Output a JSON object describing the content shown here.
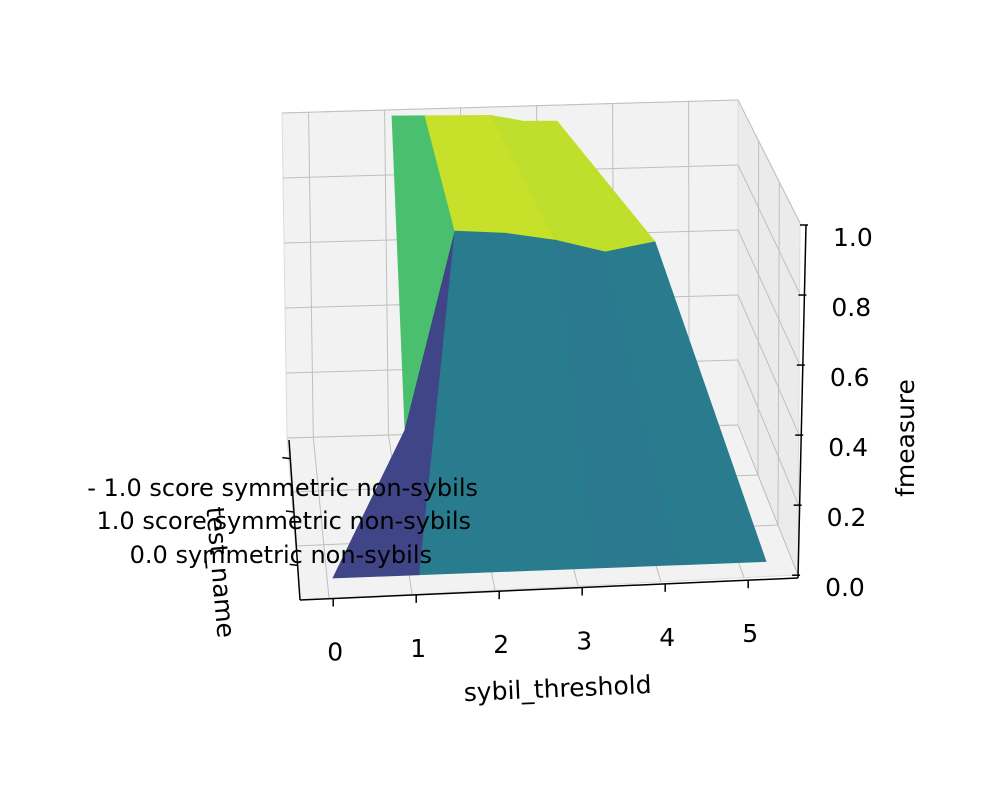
{
  "chart_data": {
    "type": "surface3d",
    "colormap": "viridis",
    "xlabel": "sybil_threshold",
    "ylabel": "test_name",
    "zlabel": "fmeasure",
    "x_ticks": [
      0,
      1,
      2,
      3,
      4,
      5
    ],
    "z_ticks": [
      "0.0",
      "0.2",
      "0.4",
      "0.6",
      "0.8",
      "1.0"
    ],
    "zlim": [
      0,
      1
    ],
    "y_categories": [
      "- 1.0 score symmetric non-sybils",
      "1.0 score symmetric non-sybils",
      "0.0 symmetric non-sybils"
    ],
    "grid": true,
    "surface": {
      "x": [
        0,
        1,
        2,
        3,
        4,
        5
      ],
      "rows": [
        {
          "category": "- 1.0 score symmetric non-sybils",
          "z": [
            1.0,
            1.0,
            1.0,
            1.0,
            0.98,
            0.98
          ]
        },
        {
          "category": "1.0 score symmetric non-sybils",
          "z": [
            0.0,
            0.83,
            0.84,
            0.83,
            0.8,
            0.86
          ]
        },
        {
          "category": "0.0 symmetric non-sybils",
          "z": [
            0.0,
            0.0,
            0.0,
            0.0,
            0.0,
            0.0
          ]
        }
      ]
    }
  }
}
